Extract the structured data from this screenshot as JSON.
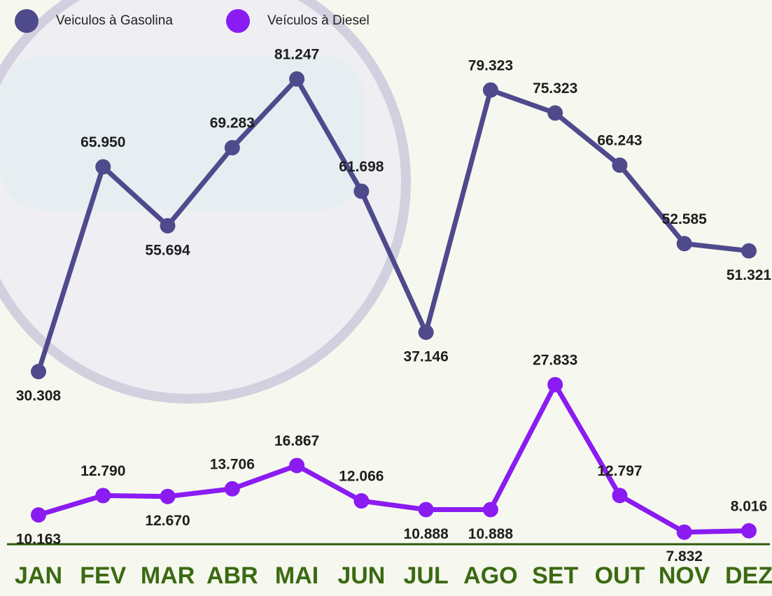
{
  "chart_data": {
    "type": "line",
    "categories": [
      "JAN",
      "FEV",
      "MAR",
      "ABR",
      "MAI",
      "JUN",
      "JUL",
      "AGO",
      "SET",
      "OUT",
      "NOV",
      "DEZ"
    ],
    "series": [
      {
        "name": "Veiculos à Gasolina",
        "color": "#4f4a8c",
        "values": [
          30308,
          65950,
          55694,
          69283,
          81247,
          61698,
          37146,
          79323,
          75323,
          66243,
          52585,
          51321
        ],
        "value_labels": [
          "30.308",
          "65.950",
          "55.694",
          "69.283",
          "81.247",
          "61.698",
          "37.146",
          "79.323",
          "75.323",
          "66.243",
          "52.585",
          "51.321"
        ]
      },
      {
        "name": "Veículos à Diesel",
        "color": "#8a1cf2",
        "axis": "y2",
        "values": [
          10163,
          12790,
          12670,
          13706,
          16867,
          12066,
          10888,
          10888,
          27833,
          12797,
          7832,
          8016
        ],
        "value_labels": [
          "10.163",
          "12.790",
          "12.670",
          "13.706",
          "16.867",
          "12.066",
          "10.888",
          "10.888",
          "27.833",
          "12.797",
          "7.832",
          "8.016"
        ]
      }
    ],
    "ylim": [
      0,
      95000
    ],
    "y2lim": [
      6000,
      80000
    ],
    "legend": "top-left"
  }
}
